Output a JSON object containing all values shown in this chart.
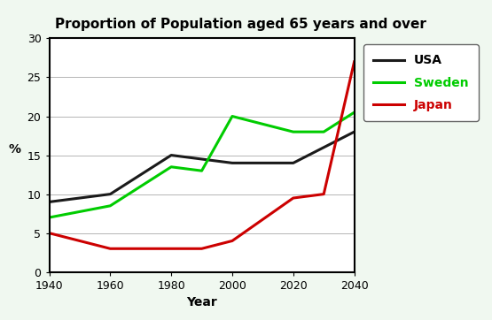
{
  "title": "Proportion of Population aged 65 years and over",
  "xlabel": "Year",
  "ylabel": "%",
  "xlim": [
    1940,
    2040
  ],
  "ylim": [
    0,
    30
  ],
  "xticks": [
    1940,
    1960,
    1980,
    2000,
    2020,
    2040
  ],
  "yticks": [
    0,
    5,
    10,
    15,
    20,
    25,
    30
  ],
  "background_color": "#f0f8f0",
  "plot_bg_color": "#ffffff",
  "series": [
    {
      "name": "USA",
      "color": "#1a1a1a",
      "linewidth": 2.2,
      "x": [
        1940,
        1960,
        1980,
        1990,
        2000,
        2020,
        2030,
        2040
      ],
      "y": [
        9,
        10,
        15,
        14.5,
        14,
        14,
        16,
        18
      ]
    },
    {
      "name": "Sweden",
      "color": "#00cc00",
      "linewidth": 2.2,
      "x": [
        1940,
        1960,
        1980,
        1990,
        2000,
        2020,
        2030,
        2040
      ],
      "y": [
        7,
        8.5,
        13.5,
        13,
        20,
        18,
        18,
        20.5
      ]
    },
    {
      "name": "Japan",
      "color": "#cc0000",
      "linewidth": 2.2,
      "x": [
        1940,
        1960,
        1980,
        1990,
        2000,
        2020,
        2030,
        2040
      ],
      "y": [
        5,
        3,
        3,
        3,
        4,
        9.5,
        10,
        27
      ]
    }
  ],
  "legend_line_colors": {
    "USA": "#1a1a1a",
    "Sweden": "#00cc00",
    "Japan": "#cc0000"
  },
  "legend_text_colors": {
    "USA": "#000000",
    "Sweden": "#00cc00",
    "Japan": "#cc0000"
  },
  "title_fontsize": 11,
  "axis_label_fontsize": 10,
  "tick_fontsize": 9,
  "legend_fontsize": 10
}
